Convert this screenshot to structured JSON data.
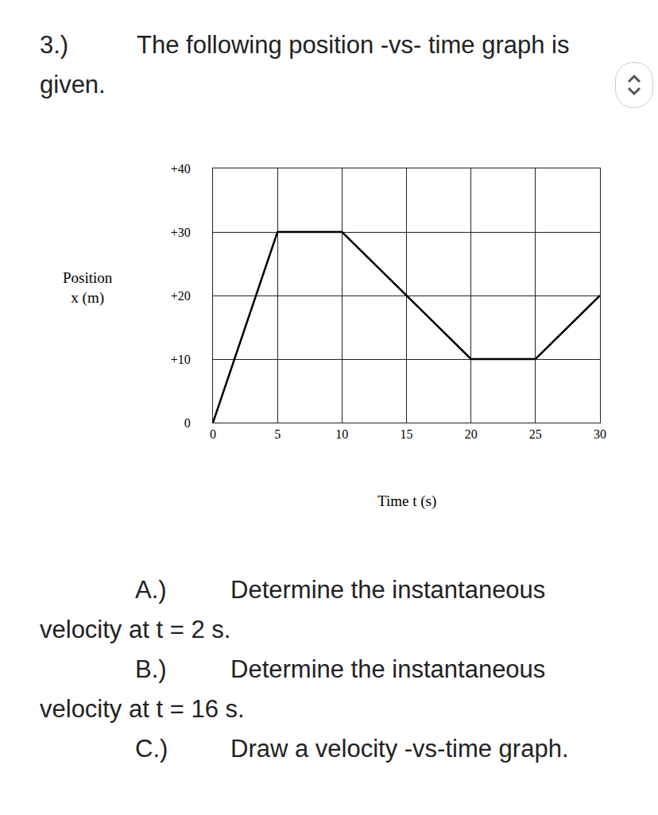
{
  "question": {
    "number": "3.)",
    "text": "The following position -vs- time graph is given.",
    "parts": [
      {
        "label": "A.)",
        "text": "Determine the instantaneous velocity at t = 2 s."
      },
      {
        "label": "B.)",
        "text": "Determine the instantaneous velocity at t = 16 s."
      },
      {
        "label": "C.)",
        "text": "Draw a velocity -vs-time graph."
      }
    ]
  },
  "chart_data": {
    "type": "line",
    "color": "#000000",
    "xlabel": "Time t (s)",
    "ylabel": [
      "Position",
      "x (m)"
    ],
    "x": [
      0,
      5,
      10,
      15,
      20,
      25,
      30
    ],
    "values": [
      0,
      30,
      30,
      20,
      10,
      10,
      20
    ],
    "xlim": [
      0,
      30
    ],
    "ylim": [
      0,
      40
    ],
    "xticks": [
      0,
      5,
      10,
      15,
      20,
      25,
      30
    ],
    "yticks": [
      0,
      {
        "value": 10,
        "label": "+10"
      },
      {
        "value": 20,
        "label": "+20"
      },
      {
        "value": 30,
        "label": "+30"
      },
      {
        "value": 40,
        "label": "+40"
      }
    ],
    "grid": true
  }
}
